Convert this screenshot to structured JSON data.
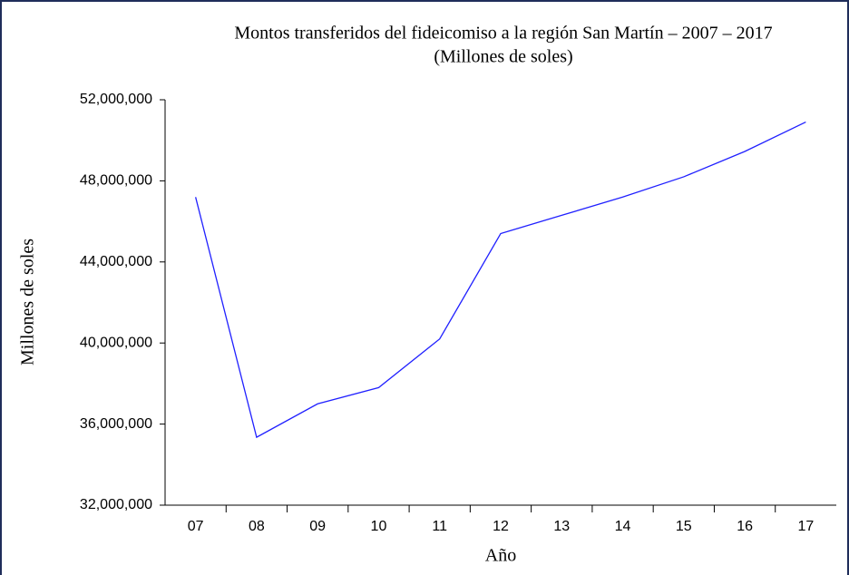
{
  "chart_data": {
    "type": "line",
    "title": "Montos transferidos del fideicomiso a la región San Martín – 2007 – 2017",
    "subtitle": "(Millones de soles)",
    "x_label": "Año",
    "y_label": "Millones de soles",
    "categories": [
      "07",
      "08",
      "09",
      "10",
      "11",
      "12",
      "13",
      "14",
      "15",
      "16",
      "17"
    ],
    "series": [
      {
        "name": "Montos",
        "color": "#2020ff",
        "values": [
          47200000,
          35350000,
          37000000,
          37800000,
          40200000,
          45400000,
          46300000,
          47200000,
          48200000,
          49450000,
          50900000
        ]
      }
    ],
    "ylim": [
      32000000,
      52000000
    ],
    "yticks": [
      {
        "value": 32000000,
        "label": "32,000,000"
      },
      {
        "value": 36000000,
        "label": "36,000,000"
      },
      {
        "value": 40000000,
        "label": "40,000,000"
      },
      {
        "value": 44000000,
        "label": "44,000,000"
      },
      {
        "value": 48000000,
        "label": "48,000,000"
      },
      {
        "value": 52000000,
        "label": "52,000,000"
      }
    ],
    "grid": false
  }
}
